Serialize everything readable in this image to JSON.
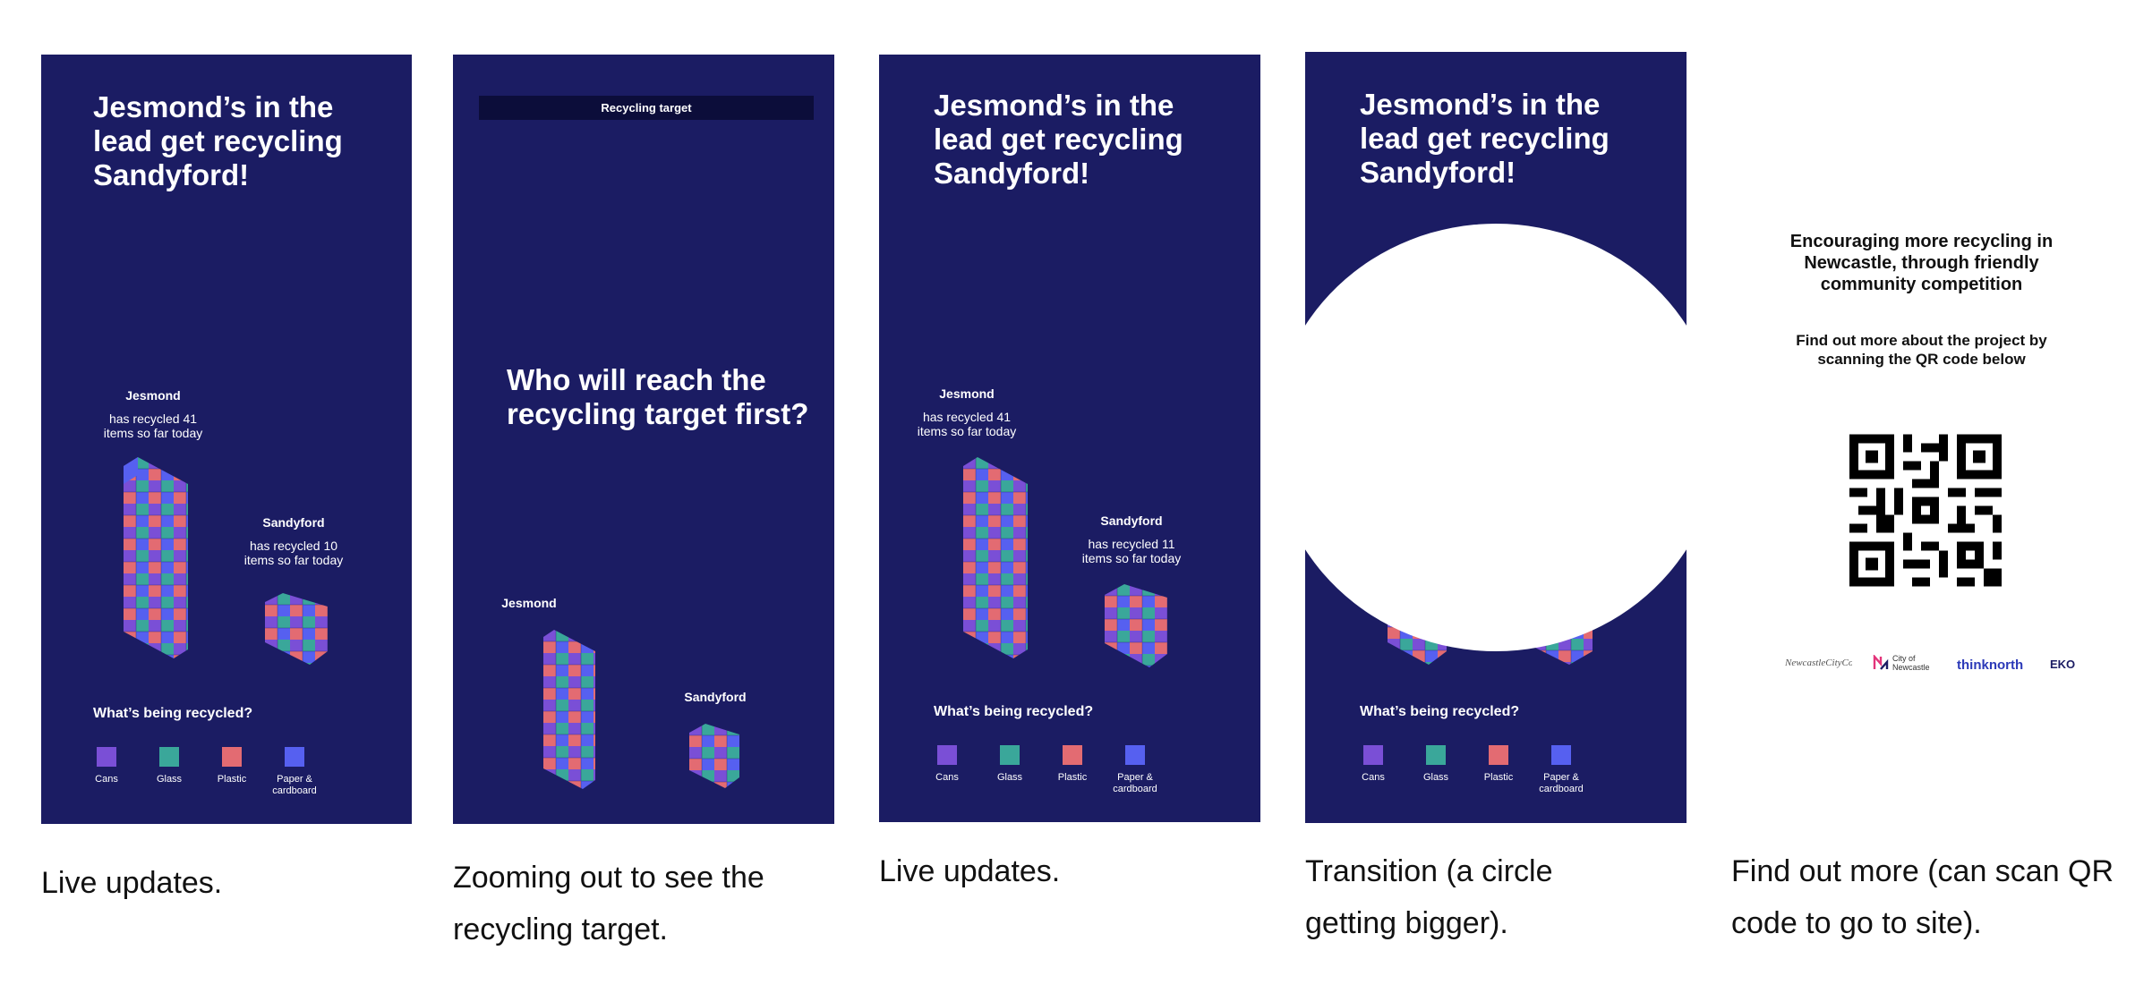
{
  "colors": {
    "panel_bg": "#1b1c63",
    "cans": "#7a4fd6",
    "glass": "#3aa79a",
    "plastic": "#e36b72",
    "paper": "#5660f0"
  },
  "headline": "Jesmond’s in the lead get recycling Sandyford!",
  "legend": {
    "heading": "What’s being recycled?",
    "items": [
      "Cans",
      "Glass",
      "Plastic",
      "Paper & cardboard"
    ]
  },
  "panel1": {
    "jesmond": {
      "name": "Jesmond",
      "stat": "has recycled 41 items so far today"
    },
    "sandyford": {
      "name": "Sandyford",
      "stat": "has recycled 10 items so far today"
    },
    "caption": "Live updates."
  },
  "panel2": {
    "target_label": "Recycling target",
    "question": "Who will reach the recycling target first?",
    "jesmond_name": "Jesmond",
    "sandyford_name": "Sandyford",
    "caption": "Zooming out to see the recycling target."
  },
  "panel3": {
    "jesmond": {
      "name": "Jesmond",
      "stat": "has recycled 41 items so far today"
    },
    "sandyford": {
      "name": "Sandyford",
      "stat": "has recycled 11 items so far today"
    },
    "caption": "Live updates."
  },
  "panel4": {
    "caption": "Transition (a circle getting bigger)."
  },
  "panel5": {
    "intro": "Encouraging more recycling in Newcastle, through friendly community competition",
    "cta": "Find out more about the project by scanning the QR code below",
    "logos": [
      "NewcastleCityCouncil",
      "City of Newcastle",
      "thinknorth",
      "EKO"
    ],
    "caption": "Find out more (can scan QR code to go to site)."
  }
}
